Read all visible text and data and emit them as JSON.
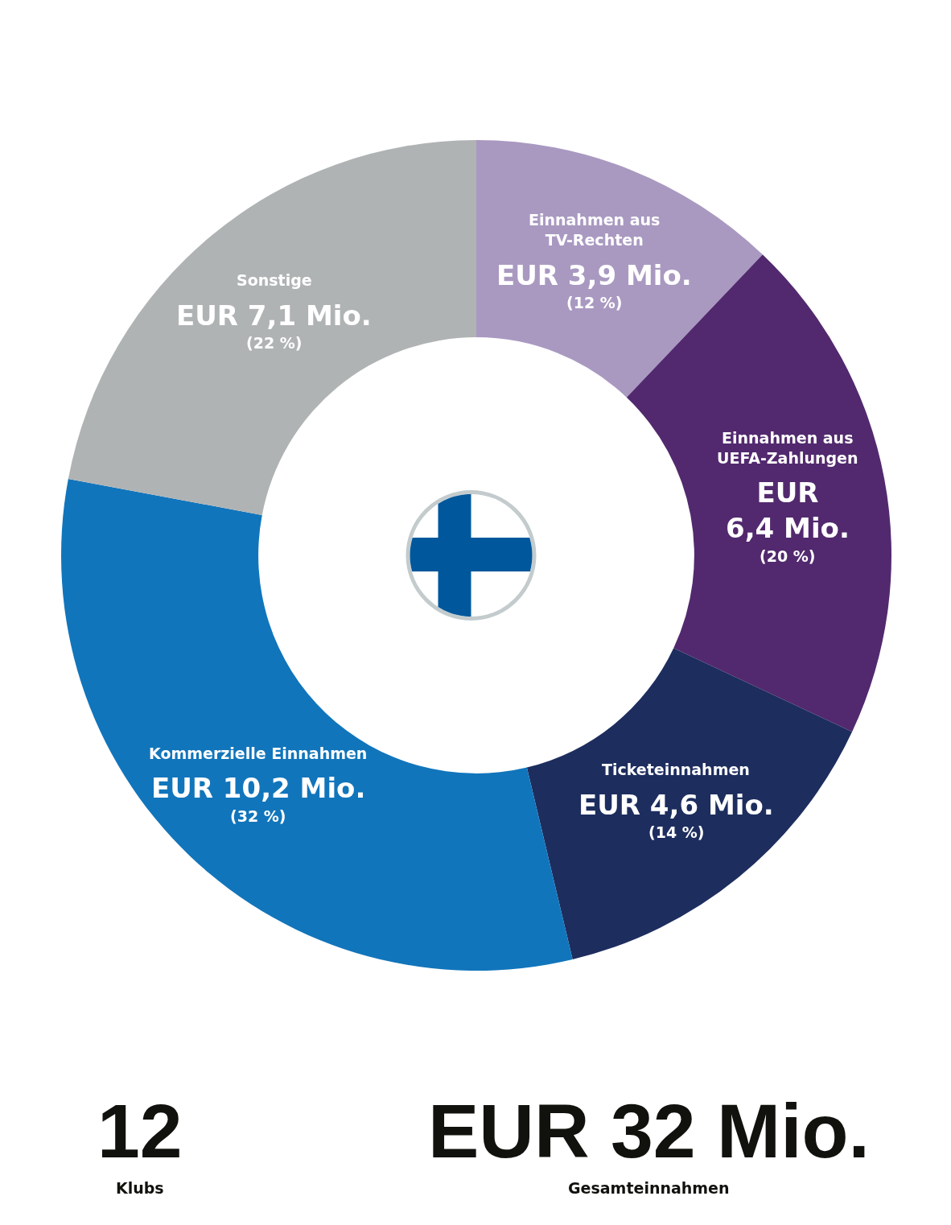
{
  "chart_data": {
    "type": "donut",
    "categories": [
      "Einnahmen aus\nTV-Rechten",
      "Einnahmen aus\nUEFA-Zahlungen",
      "Ticketeinnahmen",
      "Kommerzielle Einnahmen",
      "Sonstige"
    ],
    "values": [
      3.9,
      6.4,
      4.6,
      10.2,
      7.1
    ],
    "colors": [
      "#a999c1",
      "#52296e",
      "#1d2d5e",
      "#1175bb",
      "#b0b3b4"
    ],
    "value_labels": [
      "EUR 3,9 Mio.\n(12 %)",
      "EUR\n6,4 Mio.\n(20 %)",
      "EUR 4,6 Mio.\n(14 %)",
      "EUR 10,2 Mio.\n(32 %)",
      "EUR 7,1 Mio.\n(22 %)"
    ],
    "annotations": [
      "12",
      "Klubs",
      "EUR 32 Mio.",
      "Gesamteinnahmen"
    ]
  }
}
